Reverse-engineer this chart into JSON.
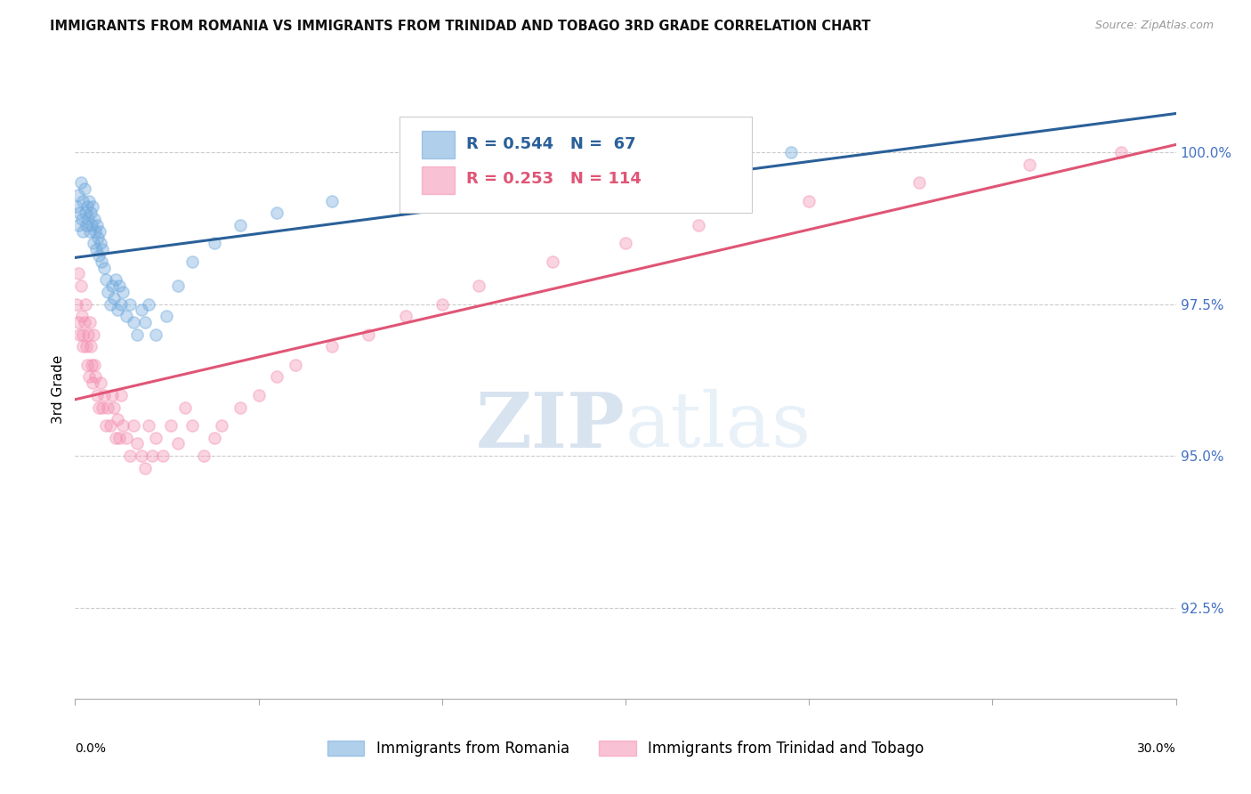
{
  "title": "IMMIGRANTS FROM ROMANIA VS IMMIGRANTS FROM TRINIDAD AND TOBAGO 3RD GRADE CORRELATION CHART",
  "source": "Source: ZipAtlas.com",
  "ylabel": "3rd Grade",
  "xlim": [
    0.0,
    30.0
  ],
  "ylim": [
    91.0,
    101.2
  ],
  "legend_romania": "Immigrants from Romania",
  "legend_tt": "Immigrants from Trinidad and Tobago",
  "R_romania": 0.544,
  "N_romania": 67,
  "R_tt": 0.253,
  "N_tt": 114,
  "color_romania": "#6fa8dc",
  "color_tt": "#f48fb1",
  "color_romania_line": "#2a6099",
  "color_tt_line": "#e05575",
  "color_ytick": "#4472c4",
  "romania_x": [
    0.05,
    0.08,
    0.1,
    0.12,
    0.15,
    0.18,
    0.2,
    0.22,
    0.25,
    0.28,
    0.3,
    0.33,
    0.35,
    0.38,
    0.4,
    0.42,
    0.45,
    0.48,
    0.5,
    0.52,
    0.55,
    0.58,
    0.6,
    0.62,
    0.65,
    0.68,
    0.7,
    0.72,
    0.75,
    0.8,
    0.85,
    0.9,
    0.95,
    1.0,
    1.05,
    1.1,
    1.15,
    1.2,
    1.25,
    1.3,
    1.4,
    1.5,
    1.6,
    1.7,
    1.8,
    1.9,
    2.0,
    2.2,
    2.5,
    2.8,
    3.2,
    3.8,
    4.5,
    5.5,
    7.0,
    9.0,
    12.0,
    15.0,
    17.0,
    19.5
  ],
  "romania_y": [
    99.1,
    98.8,
    99.3,
    99.0,
    99.5,
    98.9,
    99.2,
    98.7,
    99.4,
    99.0,
    98.8,
    99.1,
    98.9,
    99.2,
    98.7,
    99.0,
    98.8,
    99.1,
    98.5,
    98.9,
    98.7,
    98.4,
    98.8,
    98.6,
    98.3,
    98.7,
    98.5,
    98.2,
    98.4,
    98.1,
    97.9,
    97.7,
    97.5,
    97.8,
    97.6,
    97.9,
    97.4,
    97.8,
    97.5,
    97.7,
    97.3,
    97.5,
    97.2,
    97.0,
    97.4,
    97.2,
    97.5,
    97.0,
    97.3,
    97.8,
    98.2,
    98.5,
    98.8,
    99.0,
    99.2,
    99.5,
    99.6,
    99.8,
    99.7,
    100.0
  ],
  "tt_x": [
    0.05,
    0.08,
    0.1,
    0.12,
    0.15,
    0.18,
    0.2,
    0.22,
    0.25,
    0.28,
    0.3,
    0.33,
    0.35,
    0.38,
    0.4,
    0.42,
    0.45,
    0.48,
    0.5,
    0.52,
    0.55,
    0.6,
    0.65,
    0.7,
    0.75,
    0.8,
    0.85,
    0.9,
    0.95,
    1.0,
    1.05,
    1.1,
    1.15,
    1.2,
    1.25,
    1.3,
    1.4,
    1.5,
    1.6,
    1.7,
    1.8,
    1.9,
    2.0,
    2.1,
    2.2,
    2.4,
    2.6,
    2.8,
    3.0,
    3.2,
    3.5,
    3.8,
    4.0,
    4.5,
    5.0,
    5.5,
    6.0,
    7.0,
    8.0,
    9.0,
    10.0,
    11.0,
    13.0,
    15.0,
    17.0,
    20.0,
    23.0,
    26.0,
    28.5
  ],
  "tt_y": [
    97.5,
    97.2,
    98.0,
    97.0,
    97.8,
    97.3,
    97.0,
    96.8,
    97.2,
    97.5,
    96.8,
    96.5,
    97.0,
    96.3,
    97.2,
    96.8,
    96.5,
    96.2,
    97.0,
    96.5,
    96.3,
    96.0,
    95.8,
    96.2,
    95.8,
    96.0,
    95.5,
    95.8,
    95.5,
    96.0,
    95.8,
    95.3,
    95.6,
    95.3,
    96.0,
    95.5,
    95.3,
    95.0,
    95.5,
    95.2,
    95.0,
    94.8,
    95.5,
    95.0,
    95.3,
    95.0,
    95.5,
    95.2,
    95.8,
    95.5,
    95.0,
    95.3,
    95.5,
    95.8,
    96.0,
    96.3,
    96.5,
    96.8,
    97.0,
    97.3,
    97.5,
    97.8,
    98.2,
    98.5,
    98.8,
    99.2,
    99.5,
    99.8,
    100.0
  ],
  "watermark_zip": "ZIP",
  "watermark_atlas": "atlas",
  "background_color": "#ffffff",
  "grid_color": "#cccccc",
  "marker_size": 90,
  "marker_alpha": 0.38,
  "marker_lw": 1.3
}
